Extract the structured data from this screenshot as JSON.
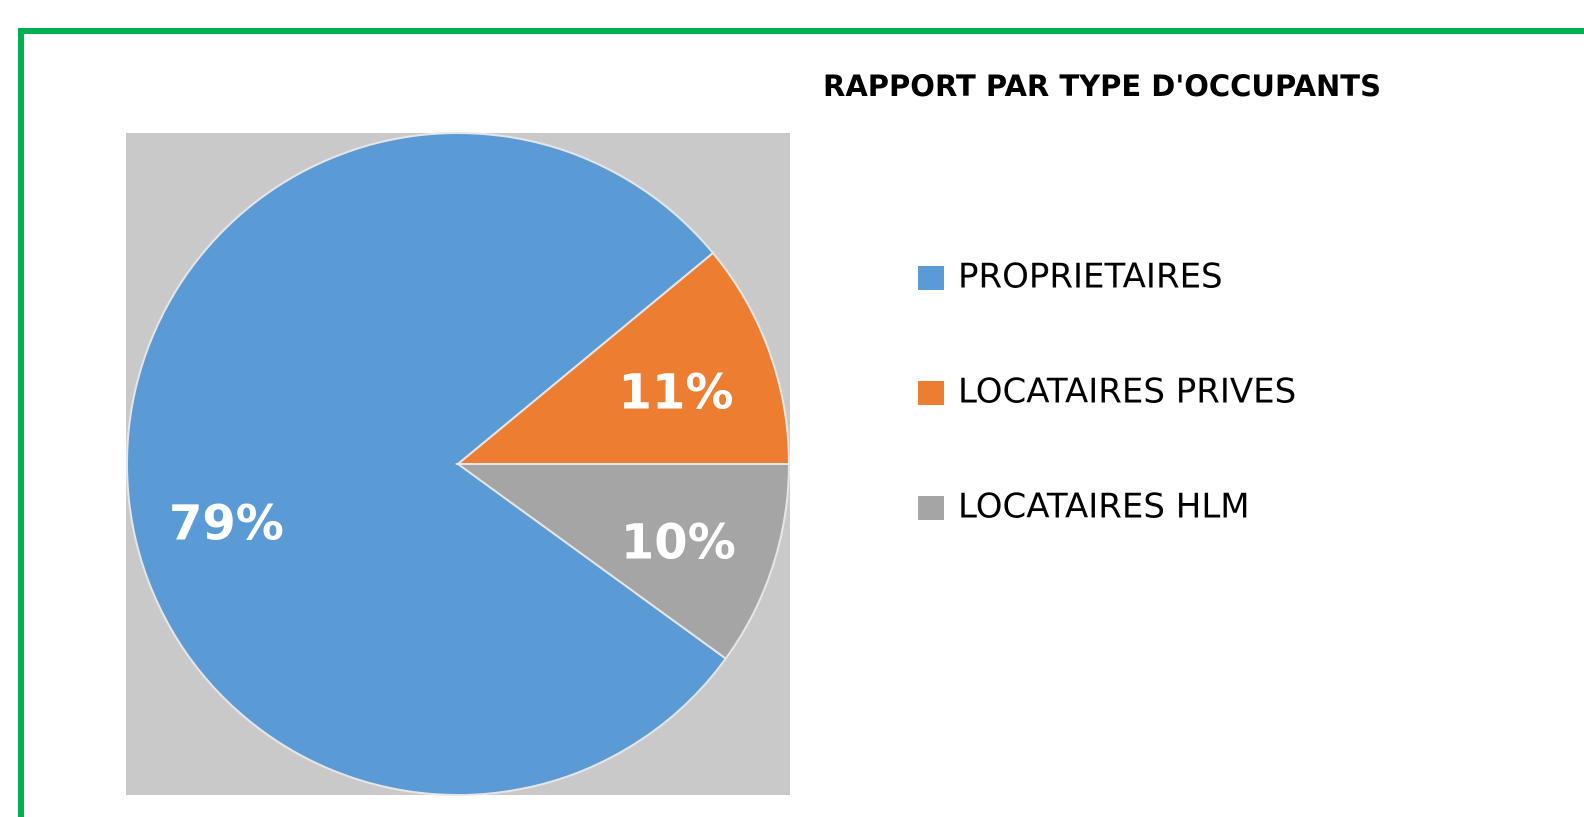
{
  "chart_data": {
    "type": "pie",
    "title": "RAPPORT PAR TYPE D'OCCUPANTS",
    "categories": [
      "PROPRIETAIRES",
      "LOCATAIRES PRIVES",
      "LOCATAIRES HLM"
    ],
    "values": [
      79,
      11,
      10
    ],
    "value_labels": [
      "79%",
      "11%",
      "10%"
    ],
    "colors": [
      "#5b9bd5",
      "#ed7d31",
      "#a5a5a5"
    ],
    "legend": "right"
  }
}
